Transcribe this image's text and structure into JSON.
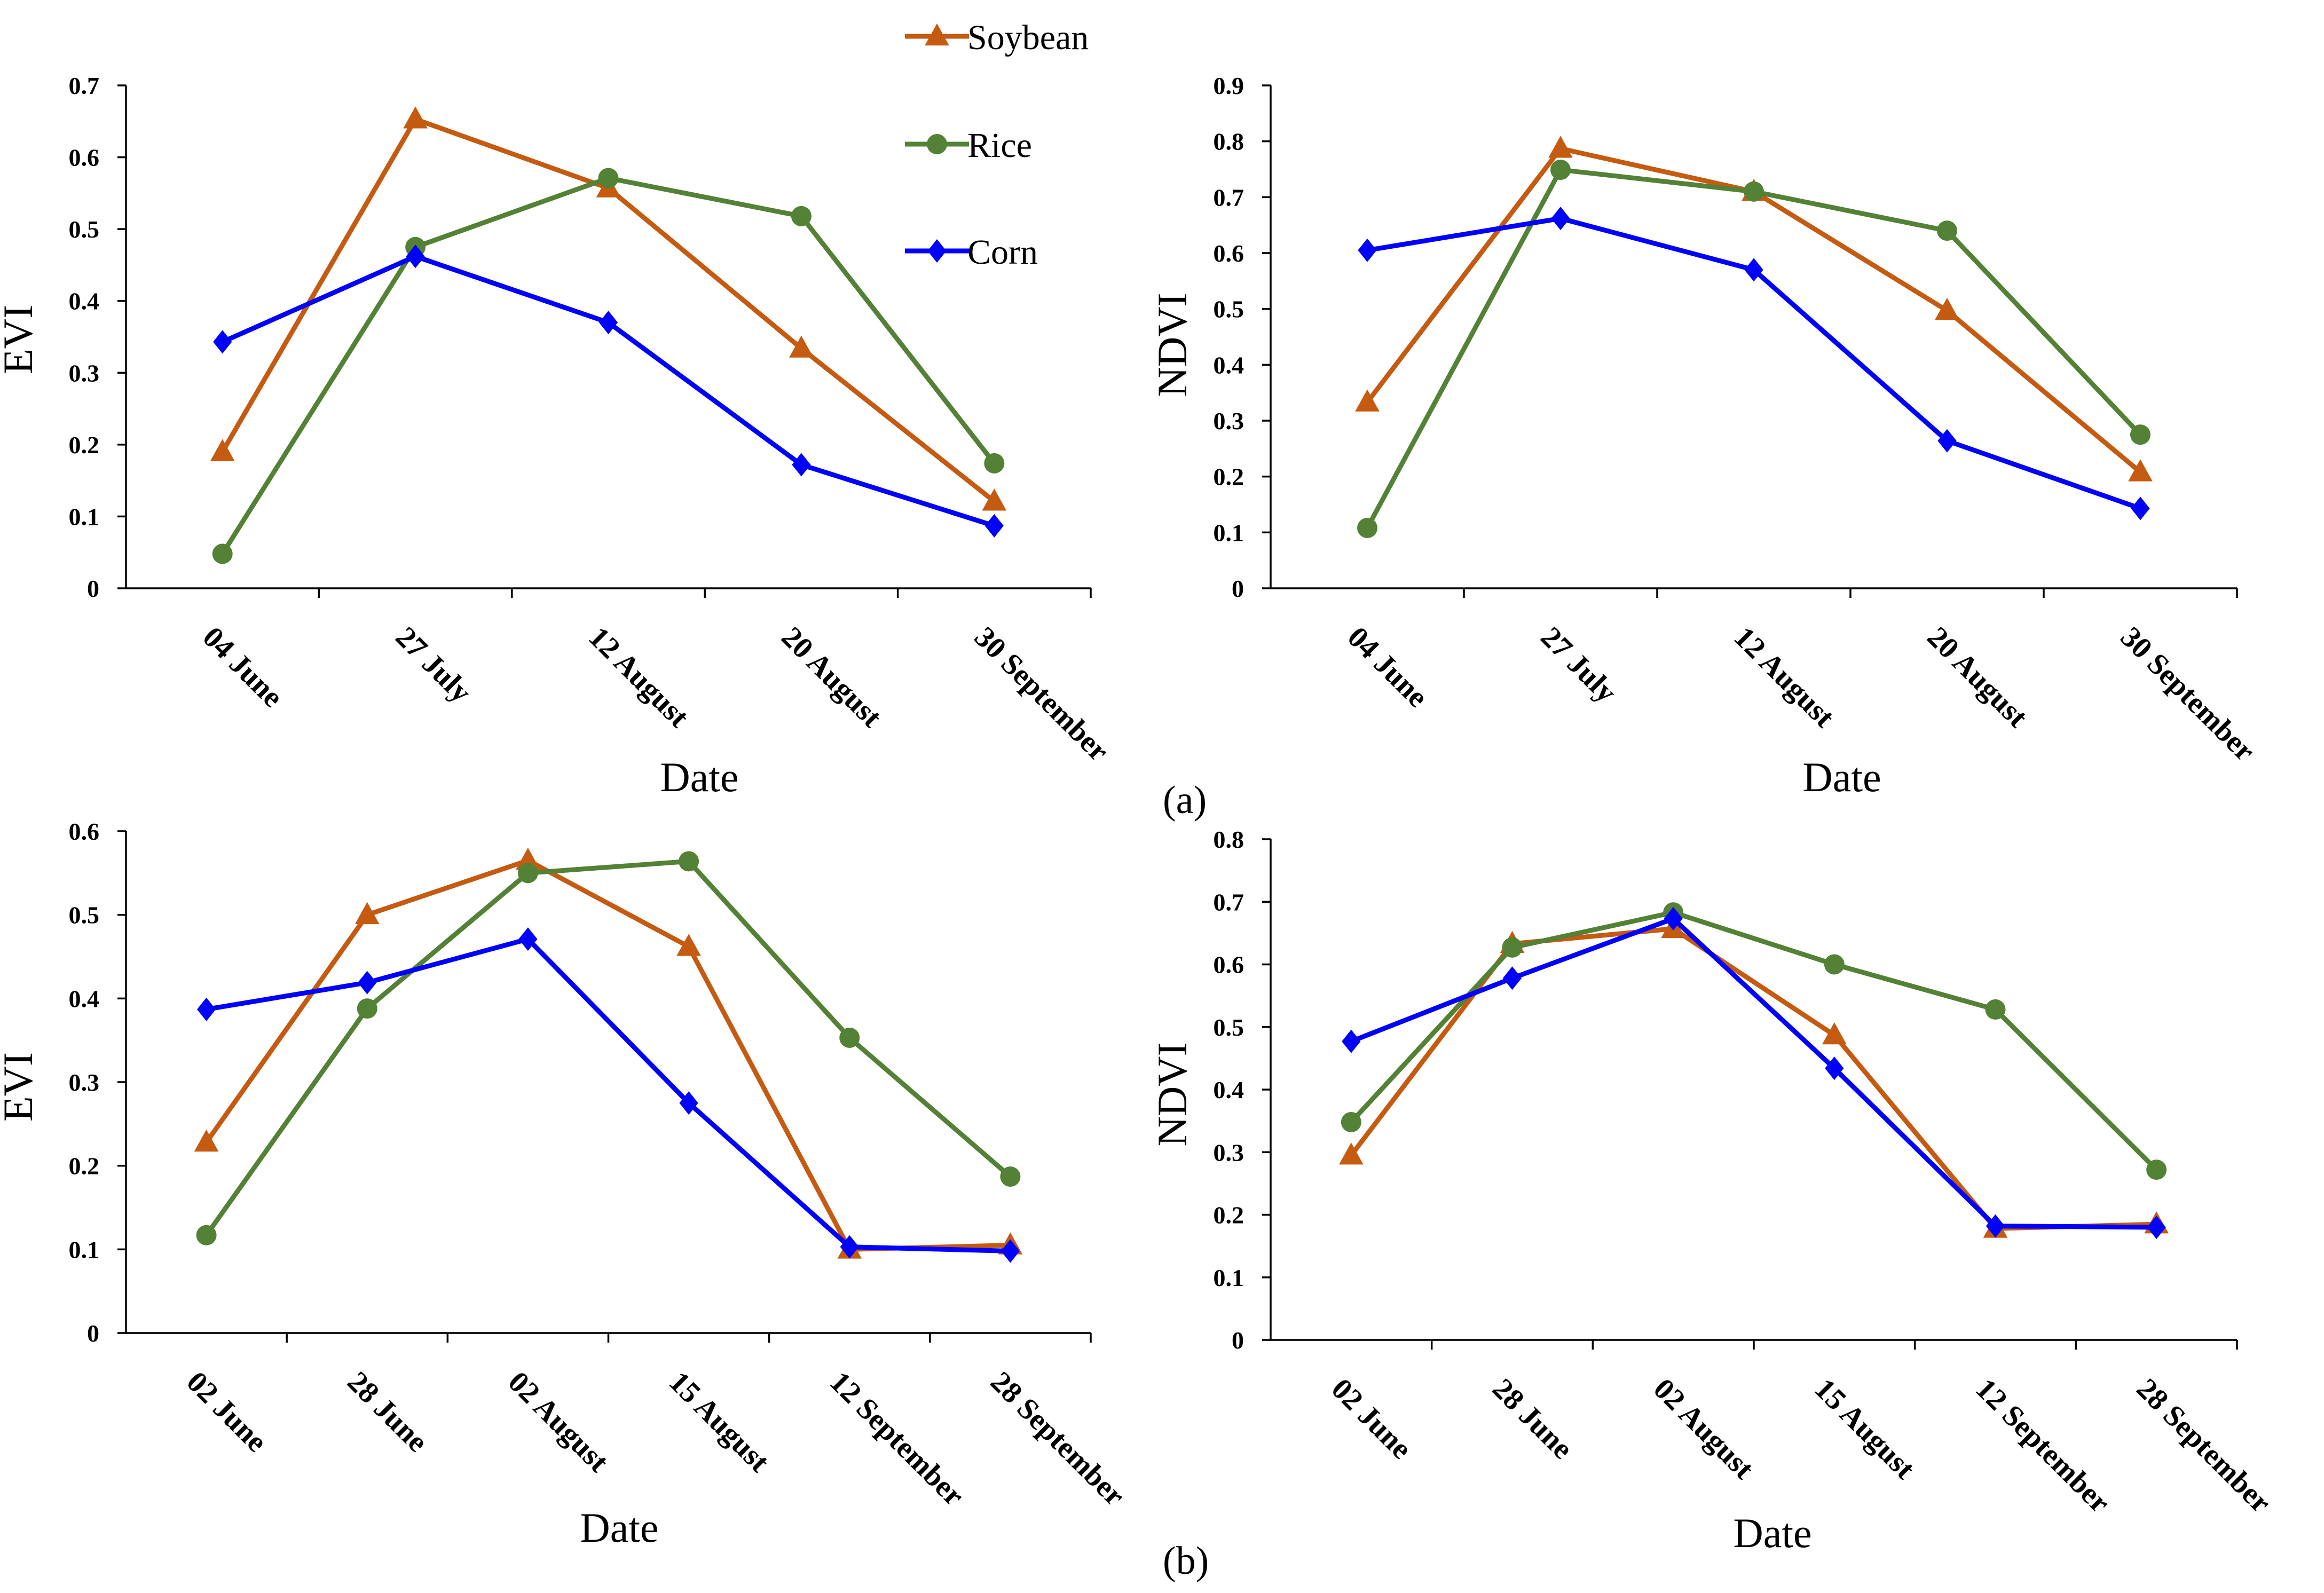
{
  "colors": {
    "Soybean": "#C55A11",
    "Rice": "#538135",
    "Corn": "#0000FF"
  },
  "legend": [
    {
      "name": "Soybean",
      "marker": "triangle"
    },
    {
      "name": "Rice",
      "marker": "circle"
    },
    {
      "name": "Corn",
      "marker": "diamond"
    }
  ],
  "panel_labels": [
    "(a)",
    "(b)"
  ],
  "chart_data": [
    {
      "type": "line",
      "id": "a-evi",
      "xlabel": "Date",
      "ylabel": "EVI",
      "ylim": [
        0,
        0.7
      ],
      "yticks": [
        "0",
        "0.1",
        "0.2",
        "0.3",
        "0.4",
        "0.5",
        "0.6",
        "0.7"
      ],
      "categories": [
        "04 June",
        "27 July",
        "12 August",
        "20 August",
        "30 September"
      ],
      "series": [
        {
          "name": "Soybean",
          "values": [
            0.19,
            0.653,
            0.557,
            0.334,
            0.121
          ]
        },
        {
          "name": "Rice",
          "values": [
            0.048,
            0.475,
            0.571,
            0.518,
            0.174
          ]
        },
        {
          "name": "Corn",
          "values": [
            0.343,
            0.462,
            0.37,
            0.172,
            0.087
          ]
        }
      ]
    },
    {
      "type": "line",
      "id": "a-ndvi",
      "xlabel": "Date",
      "ylabel": "NDVI",
      "ylim": [
        0,
        0.9
      ],
      "yticks": [
        "0",
        "0.1",
        "0.2",
        "0.3",
        "0.4",
        "0.5",
        "0.6",
        "0.7",
        "0.8",
        "0.9"
      ],
      "categories": [
        "04 June",
        "27 July",
        "12 August",
        "20 August",
        "30 September"
      ],
      "series": [
        {
          "name": "Soybean",
          "values": [
            0.333,
            0.787,
            0.71,
            0.497,
            0.208
          ]
        },
        {
          "name": "Rice",
          "values": [
            0.108,
            0.749,
            0.71,
            0.64,
            0.275
          ]
        },
        {
          "name": "Corn",
          "values": [
            0.605,
            0.662,
            0.57,
            0.264,
            0.143
          ]
        }
      ]
    },
    {
      "type": "line",
      "id": "b-evi",
      "xlabel": "Date",
      "ylabel": "EVI",
      "ylim": [
        0,
        0.6
      ],
      "yticks": [
        "0",
        "0.1",
        "0.2",
        "0.3",
        "0.4",
        "0.5",
        "0.6"
      ],
      "categories": [
        "02 June",
        "28 June",
        "02 August",
        "15 August",
        "12 September",
        "28 September"
      ],
      "series": [
        {
          "name": "Soybean",
          "values": [
            0.228,
            0.5,
            0.565,
            0.462,
            0.1,
            0.105
          ]
        },
        {
          "name": "Rice",
          "values": [
            0.117,
            0.388,
            0.55,
            0.564,
            0.353,
            0.187
          ]
        },
        {
          "name": "Corn",
          "values": [
            0.387,
            0.419,
            0.471,
            0.275,
            0.103,
            0.098
          ]
        }
      ]
    },
    {
      "type": "line",
      "id": "b-ndvi",
      "xlabel": "Date",
      "ylabel": "NDVI",
      "ylim": [
        0,
        0.8
      ],
      "yticks": [
        "0",
        "0.1",
        "0.2",
        "0.3",
        "0.4",
        "0.5",
        "0.6",
        "0.7",
        "0.8"
      ],
      "categories": [
        "02 June",
        "28 June",
        "02 August",
        "15 August",
        "12 September",
        "28 September"
      ],
      "series": [
        {
          "name": "Soybean",
          "values": [
            0.295,
            0.633,
            0.657,
            0.487,
            0.178,
            0.185
          ]
        },
        {
          "name": "Rice",
          "values": [
            0.348,
            0.627,
            0.683,
            0.6,
            0.528,
            0.272
          ]
        },
        {
          "name": "Corn",
          "values": [
            0.477,
            0.578,
            0.673,
            0.434,
            0.182,
            0.18
          ]
        }
      ]
    }
  ]
}
